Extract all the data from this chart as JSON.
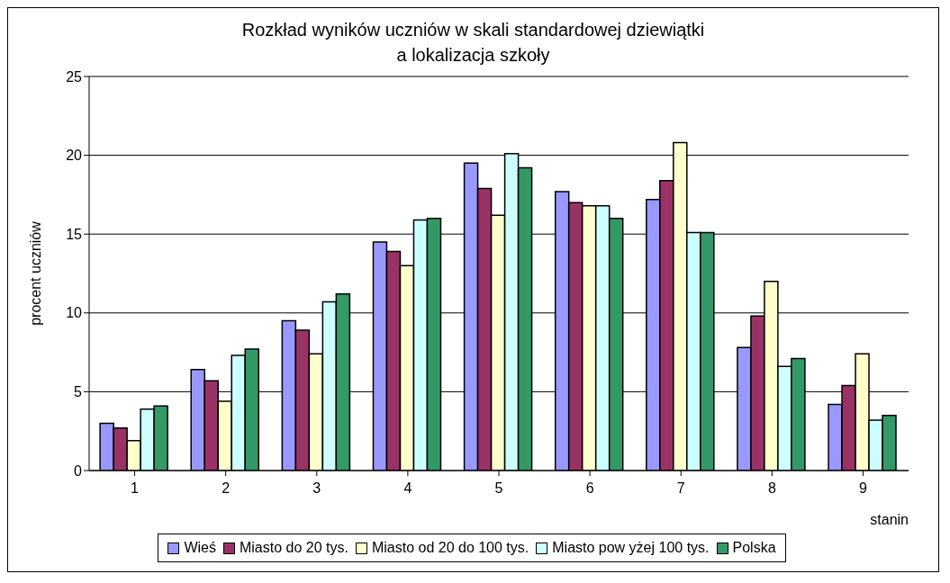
{
  "chart_data": {
    "type": "bar",
    "title": "Rozkład wyników uczniów w skali standardowej dziewiątki\na lokalizacja szkoły",
    "xlabel": "stanin",
    "ylabel": "procent uczniów",
    "categories": [
      "1",
      "2",
      "3",
      "4",
      "5",
      "6",
      "7",
      "8",
      "9"
    ],
    "series": [
      {
        "name": "Wieś",
        "color": "#9999ff",
        "values": [
          3.0,
          6.4,
          9.5,
          14.5,
          19.5,
          17.7,
          17.2,
          7.8,
          4.2
        ]
      },
      {
        "name": "Miasto do 20 tys.",
        "color": "#993366",
        "values": [
          2.7,
          5.7,
          8.9,
          13.9,
          17.9,
          17.0,
          18.4,
          9.8,
          5.4
        ]
      },
      {
        "name": "Miasto od 20 do 100 tys.",
        "color": "#ffffcc",
        "values": [
          1.9,
          4.4,
          7.4,
          13.0,
          16.2,
          16.8,
          20.8,
          12.0,
          7.4
        ]
      },
      {
        "name": "Miasto pow yżej 100 tys.",
        "color": "#ccffff",
        "values": [
          3.9,
          7.3,
          10.7,
          15.9,
          20.1,
          16.8,
          15.1,
          6.6,
          3.2
        ]
      },
      {
        "name": "Polska",
        "color": "#339966",
        "values": [
          4.1,
          7.7,
          11.2,
          16.0,
          19.2,
          16.0,
          15.1,
          7.1,
          3.5
        ]
      }
    ],
    "ylim": [
      0,
      25
    ],
    "yticks": [
      0,
      5,
      10,
      15,
      20,
      25
    ],
    "grid": "y",
    "legend": "bottom"
  }
}
